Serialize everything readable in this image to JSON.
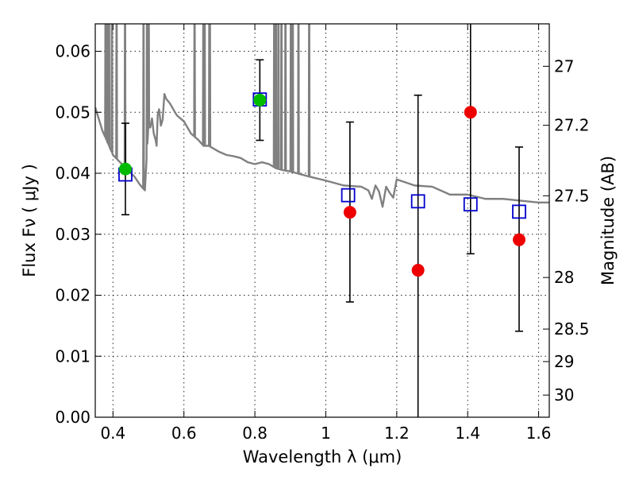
{
  "chart_data": {
    "type": "scatter",
    "xlabel": "Wavelength  λ (μm)",
    "ylabel": "Flux  Fν  ( μJy )",
    "y2label": "Magnitude (AB)",
    "xlim": [
      0.35,
      1.63
    ],
    "ylim": [
      0.0,
      0.0645
    ],
    "grid": true,
    "x_ticks": [
      0.4,
      0.6,
      0.8,
      1.0,
      1.2,
      1.4,
      1.6
    ],
    "x_tick_labels": [
      "0.4",
      "0.6",
      "0.8",
      "1",
      "1.2",
      "1.4",
      "1.6"
    ],
    "y_ticks": [
      0.0,
      0.01,
      0.02,
      0.03,
      0.04,
      0.05,
      0.06
    ],
    "y_tick_labels": [
      "0.00",
      "0.01",
      "0.02",
      "0.03",
      "0.04",
      "0.05",
      "0.06"
    ],
    "y2_ticks": [
      {
        "label": "27",
        "mag": 27.0
      },
      {
        "label": "27.2",
        "mag": 27.2
      },
      {
        "label": "27.5",
        "mag": 27.5
      },
      {
        "label": "28",
        "mag": 28.0
      },
      {
        "label": "28.5",
        "mag": 28.5
      },
      {
        "label": "29",
        "mag": 29.0
      },
      {
        "label": "30",
        "mag": 30.0
      }
    ],
    "series": [
      {
        "marker": "square-open",
        "color": "#0000cc",
        "x": [
          0.435,
          0.814,
          1.063,
          1.26,
          1.408,
          1.545
        ],
        "y": [
          0.0398,
          0.0521,
          0.0364,
          0.0354,
          0.0349,
          0.0337
        ]
      },
      {
        "marker": "circle",
        "color": "#00bb00",
        "x": [
          0.435,
          0.814
        ],
        "y": [
          0.0407,
          0.052
        ],
        "err_low": [
          0.0075,
          0.0066
        ],
        "err_high": [
          0.0075,
          0.0066
        ]
      },
      {
        "marker": "circle",
        "color": "#ee0000",
        "x": [
          1.068,
          1.26,
          1.408,
          1.545
        ],
        "y": [
          0.0336,
          0.0241,
          0.05,
          0.0291
        ],
        "err_low": [
          0.0147,
          0.0241,
          0.0232,
          0.015
        ],
        "err_high": [
          0.0148,
          0.0287,
          0.015,
          0.0152
        ]
      },
      {
        "marker": "line",
        "color": "#808080",
        "x": [
          0.35,
          0.37,
          0.385,
          0.4,
          0.42,
          0.44,
          0.46,
          0.475,
          0.485,
          0.49,
          0.5,
          0.505,
          0.51,
          0.515,
          0.52,
          0.523,
          0.526,
          0.53,
          0.535,
          0.54,
          0.545,
          0.55,
          0.56,
          0.57,
          0.58,
          0.59,
          0.6,
          0.62,
          0.64,
          0.655,
          0.66,
          0.665,
          0.67,
          0.7,
          0.72,
          0.74,
          0.76,
          0.78,
          0.8,
          0.82,
          0.84,
          0.86,
          0.88,
          0.9,
          0.95,
          1.0,
          1.05,
          1.1,
          1.12,
          1.13,
          1.14,
          1.15,
          1.16,
          1.17,
          1.18,
          1.19,
          1.2,
          1.25,
          1.3,
          1.35,
          1.4,
          1.45,
          1.5,
          1.55,
          1.6,
          1.63
        ],
        "y": [
          0.0508,
          0.047,
          0.045,
          0.043,
          0.0418,
          0.0405,
          0.0395,
          0.0382,
          0.0375,
          0.0372,
          0.048,
          0.0475,
          0.049,
          0.0465,
          0.0455,
          0.0445,
          0.0495,
          0.0505,
          0.0478,
          0.0488,
          0.053,
          0.0522,
          0.0515,
          0.0505,
          0.0495,
          0.049,
          0.0485,
          0.0465,
          0.0455,
          0.0445,
          0.0445,
          0.0445,
          0.0445,
          0.0435,
          0.043,
          0.0428,
          0.0425,
          0.0418,
          0.0415,
          0.0418,
          0.0415,
          0.0408,
          0.0405,
          0.0403,
          0.0395,
          0.0388,
          0.038,
          0.0378,
          0.0372,
          0.0358,
          0.038,
          0.037,
          0.0345,
          0.0378,
          0.0368,
          0.036,
          0.039,
          0.038,
          0.0378,
          0.0365,
          0.0365,
          0.0358,
          0.0358,
          0.0355,
          0.0352,
          0.0352
        ]
      }
    ],
    "emission_lines_x": [
      0.379,
      0.382,
      0.3868,
      0.3889,
      0.397,
      0.4102,
      0.434,
      0.4861,
      0.4959,
      0.5007,
      0.63,
      0.6548,
      0.6563,
      0.6584,
      0.6717,
      0.6731,
      0.8545,
      0.8598,
      0.8665,
      0.875,
      0.8863,
      0.9015,
      0.9069,
      0.9229,
      0.9531
    ]
  }
}
